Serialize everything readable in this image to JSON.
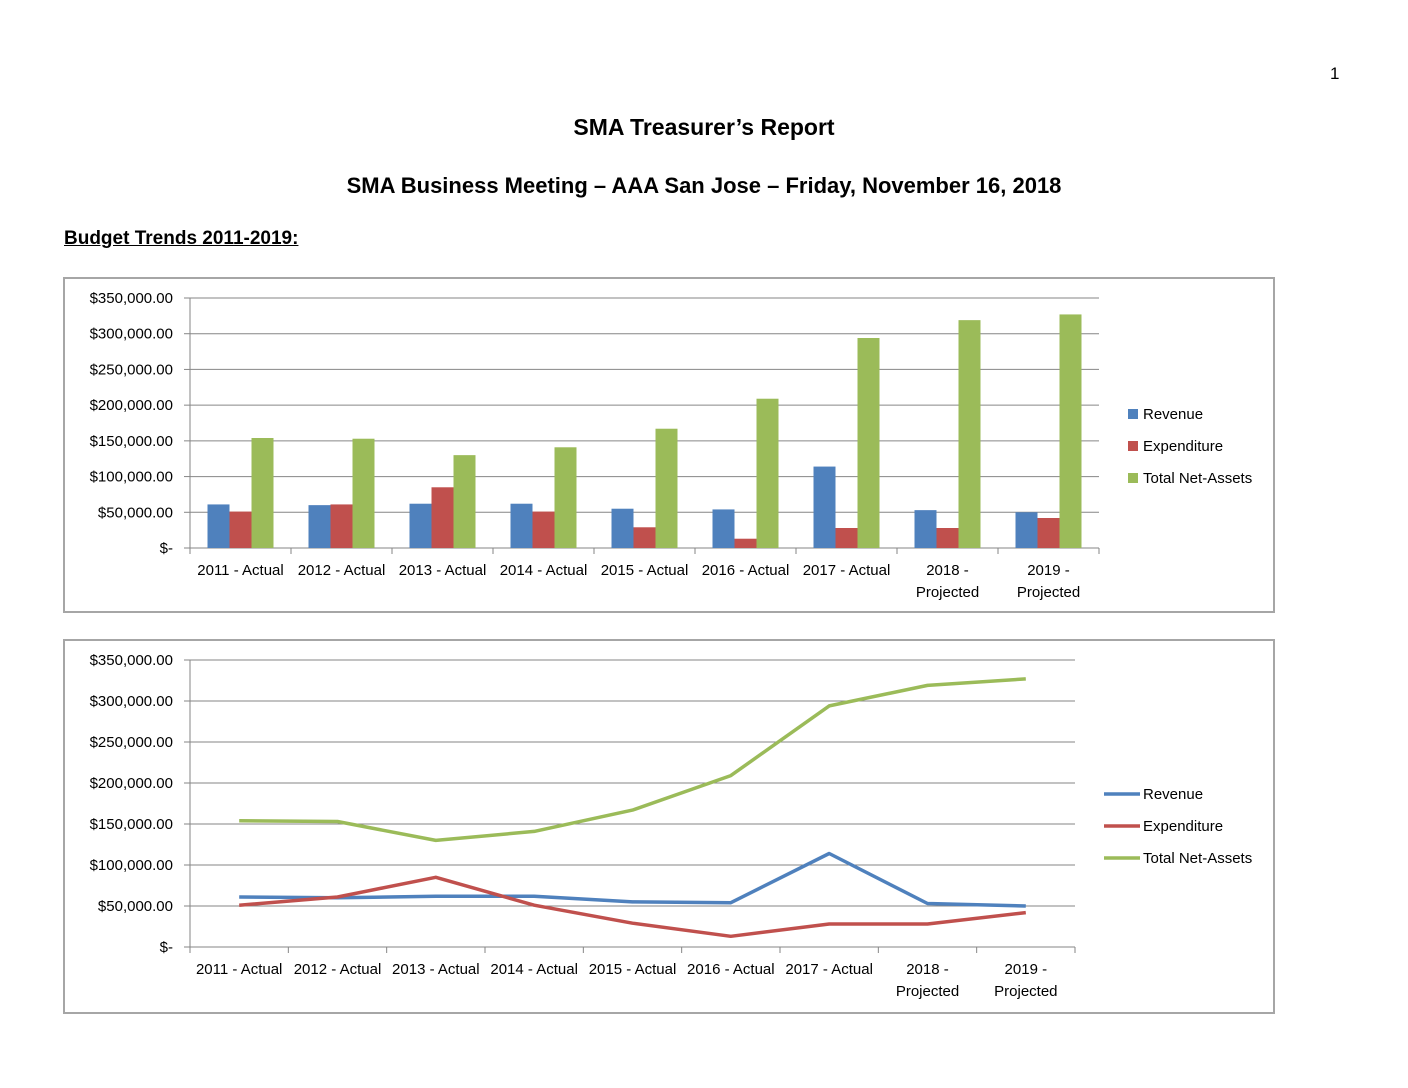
{
  "page": {
    "number": "1",
    "title": "SMA Treasurer’s Report",
    "subtitle": "SMA Business Meeting – AAA San Jose – Friday, November 16, 2018",
    "section_heading": "Budget Trends 2011-2019:"
  },
  "colors": {
    "revenue": "#4f81bd",
    "expenditure": "#c0504d",
    "net_assets": "#9bbb59",
    "grid": "#868686",
    "border": "#a6a6a6"
  },
  "chart_data": [
    {
      "type": "bar",
      "categories": [
        [
          "2011 - Actual"
        ],
        [
          "2012 - Actual"
        ],
        [
          "2013 - Actual"
        ],
        [
          "2014 - Actual"
        ],
        [
          "2015 - Actual"
        ],
        [
          "2016 - Actual"
        ],
        [
          "2017 - Actual"
        ],
        [
          "2018 -",
          "Projected"
        ],
        [
          "2019 -",
          "Projected"
        ]
      ],
      "series": [
        {
          "name": "Revenue",
          "values": [
            61000,
            60000,
            62000,
            62000,
            55000,
            54000,
            114000,
            53000,
            50000
          ]
        },
        {
          "name": "Expenditure",
          "values": [
            51000,
            61000,
            85000,
            51000,
            29000,
            13000,
            28000,
            28000,
            42000
          ]
        },
        {
          "name": "Total Net-Assets",
          "values": [
            154000,
            153000,
            130000,
            141000,
            167000,
            209000,
            294000,
            319000,
            327000
          ]
        }
      ],
      "y_ticks": [
        "$-",
        "$50,000.00",
        "$100,000.00",
        "$150,000.00",
        "$200,000.00",
        "$250,000.00",
        "$300,000.00",
        "$350,000.00"
      ],
      "ylim": [
        0,
        350000
      ],
      "grid": true,
      "legend_position": "right"
    },
    {
      "type": "line",
      "categories": [
        [
          "2011 - Actual"
        ],
        [
          "2012 - Actual"
        ],
        [
          "2013 - Actual"
        ],
        [
          "2014 - Actual"
        ],
        [
          "2015 - Actual"
        ],
        [
          "2016 - Actual"
        ],
        [
          "2017 - Actual"
        ],
        [
          "2018 -",
          "Projected"
        ],
        [
          "2019 -",
          "Projected"
        ]
      ],
      "series": [
        {
          "name": "Revenue",
          "values": [
            61000,
            60000,
            62000,
            62000,
            55000,
            54000,
            114000,
            53000,
            50000
          ]
        },
        {
          "name": "Expenditure",
          "values": [
            51000,
            61000,
            85000,
            51000,
            29000,
            13000,
            28000,
            28000,
            42000
          ]
        },
        {
          "name": "Total Net-Assets",
          "values": [
            154000,
            153000,
            130000,
            141000,
            167000,
            209000,
            294000,
            319000,
            327000
          ]
        }
      ],
      "y_ticks": [
        "$-",
        "$50,000.00",
        "$100,000.00",
        "$150,000.00",
        "$200,000.00",
        "$250,000.00",
        "$300,000.00",
        "$350,000.00"
      ],
      "ylim": [
        0,
        350000
      ],
      "grid": true,
      "legend_position": "right"
    }
  ]
}
